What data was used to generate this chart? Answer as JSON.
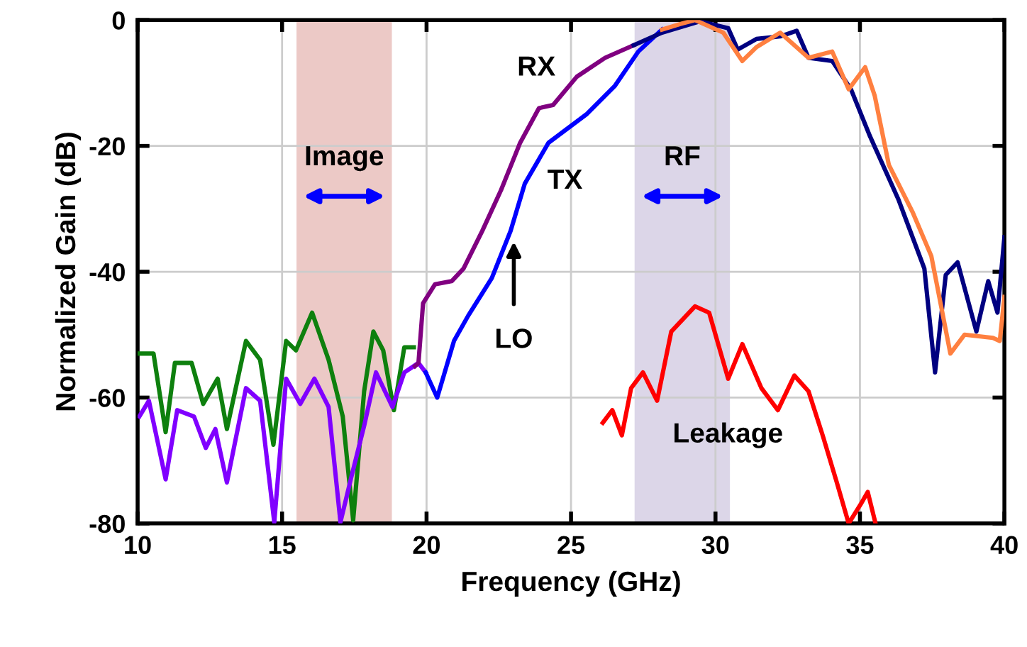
{
  "chart_data": {
    "type": "line",
    "xlabel": "Frequency (GHz)",
    "ylabel": "Normalized Gain (dB)",
    "xlim": [
      10,
      40
    ],
    "xticks": [
      10,
      15,
      20,
      25,
      30,
      35,
      40
    ],
    "ylim": [
      -80,
      0
    ],
    "yticks": [
      -80,
      -60,
      -40,
      -20,
      0
    ],
    "grid": true,
    "line_style": "solid",
    "bands": [
      {
        "axis": "x",
        "from": 15.5,
        "to": 18.8,
        "label": "Image",
        "color": "#ecc9c6"
      },
      {
        "axis": "x",
        "from": 27.2,
        "to": 30.5,
        "label": "RF",
        "color": "#dcd6e8"
      }
    ],
    "series": [
      {
        "color": "#0e800e",
        "x": [
          10.06,
          10.55,
          10.97,
          11.29,
          11.87,
          12.27,
          12.77,
          13.09,
          13.75,
          14.24,
          14.7,
          15.14,
          15.48,
          16.04,
          16.61,
          17.1,
          17.46,
          17.84,
          18.16,
          18.5,
          18.87,
          19.23,
          19.56
        ],
        "values": [
          -53,
          -53,
          -65.5,
          -54.5,
          -54.5,
          -61,
          -57,
          -65,
          -51,
          -54,
          -67.5,
          -51,
          -52.5,
          -46.5,
          -54,
          -63,
          -79.5,
          -59,
          -49.5,
          -52.5,
          -62,
          -52,
          -52
        ]
      },
      {
        "color": "#8000ff",
        "x": [
          10.06,
          10.39,
          10.97,
          11.37,
          11.95,
          12.36,
          12.69,
          13.09,
          13.75,
          14.24,
          14.73,
          15.14,
          15.63,
          16.12,
          16.61,
          17.02,
          17.43,
          17.84,
          18.25,
          18.82,
          19.23,
          19.72,
          19.97
        ],
        "values": [
          -63,
          -60.5,
          -73,
          -62,
          -63,
          -68,
          -65,
          -73.5,
          -58.5,
          -60.5,
          -79.8,
          -57,
          -61,
          -57,
          -61.5,
          -79.8,
          -72,
          -64.5,
          -56,
          -61.5,
          -56,
          -54.5,
          -56
        ]
      },
      {
        "color": "#0000ff",
        "x": [
          19.97,
          20.37,
          20.95,
          21.44,
          22.26,
          22.91,
          23.4,
          24.22,
          25.53,
          26.51,
          27.33,
          28.15
        ],
        "values": [
          -56,
          -60,
          -51,
          -47,
          -41,
          -33.5,
          -26,
          -19.5,
          -15,
          -10.5,
          -5,
          -1.5
        ]
      },
      {
        "color": "#800080",
        "x": [
          19.6,
          19.72,
          19.88,
          20.29,
          20.87,
          21.28,
          21.93,
          22.58,
          23.24,
          23.89,
          24.38,
          25.2,
          26.18,
          27.17
        ],
        "values": [
          -55,
          -54.5,
          -45,
          -42,
          -41.5,
          -39.5,
          -33.5,
          -27,
          -19.5,
          -14,
          -13.5,
          -9,
          -6,
          -4
        ]
      },
      {
        "color": "#000080",
        "x": [
          27.17,
          28.15,
          29.46,
          30.44,
          30.77,
          31.42,
          32.24,
          32.81,
          33.22,
          34.04,
          34.69,
          35.35,
          36.33,
          37.23,
          37.6,
          37.97,
          38.38,
          39.03,
          39.44,
          39.76,
          40
        ],
        "values": [
          -4,
          -2,
          -0.2,
          -1.3,
          -4.7,
          -3,
          -2.6,
          -1.7,
          -6,
          -6.5,
          -11,
          -18.5,
          -28.5,
          -39.5,
          -56,
          -40.5,
          -38.5,
          -49.5,
          -41.5,
          -46.5,
          -34.5
        ]
      },
      {
        "color": "#ff8040",
        "x": [
          28.15,
          28.8,
          29.29,
          30.27,
          30.93,
          31.42,
          32.24,
          33.22,
          34.04,
          34.61,
          35.18,
          35.51,
          36.0,
          36.82,
          37.47,
          38.13,
          38.62,
          39.6,
          39.84,
          40
        ],
        "values": [
          -1.5,
          -0.6,
          0,
          -2,
          -6.5,
          -4.3,
          -2,
          -6,
          -5,
          -11,
          -7.5,
          -12,
          -23,
          -30.5,
          -37.5,
          -53,
          -50,
          -50.5,
          -51,
          -44
        ]
      },
      {
        "color": "#ff0000",
        "x": [
          26.1,
          26.43,
          26.76,
          27.08,
          27.49,
          27.98,
          28.47,
          29.29,
          29.78,
          30.44,
          30.93,
          31.59,
          32.16,
          32.73,
          33.22,
          33.71,
          34.2,
          34.61,
          35.02,
          35.27,
          35.54
        ],
        "values": [
          -64,
          -62,
          -66,
          -58.5,
          -56,
          -60.5,
          -49.5,
          -45.5,
          -46.5,
          -57,
          -51.5,
          -58.5,
          -62,
          -56.5,
          -59,
          -66,
          -73.5,
          -80,
          -77,
          -75,
          -80
        ]
      }
    ],
    "annotations": [
      "RX",
      "TX",
      "LO",
      "Leakage"
    ]
  }
}
